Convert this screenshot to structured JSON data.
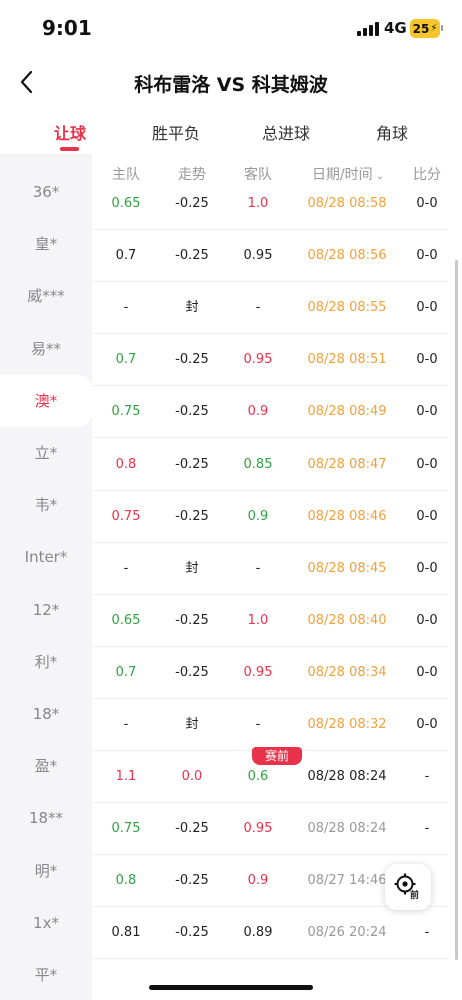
{
  "status_bar": {
    "time": "9:01",
    "network": "4G",
    "battery": "25"
  },
  "header": {
    "title": "科布雷洛 VS 科其姆波"
  },
  "tabs": [
    {
      "label": "让球",
      "active": true
    },
    {
      "label": "胜平负",
      "active": false
    },
    {
      "label": "总进球",
      "active": false
    },
    {
      "label": "角球",
      "active": false
    }
  ],
  "table_headers": {
    "home": "主队",
    "trend": "走势",
    "away": "客队",
    "date": "日期/时间",
    "score": "比分"
  },
  "sidebar": {
    "items": [
      {
        "label": "36*"
      },
      {
        "label": "皇*"
      },
      {
        "label": "威***"
      },
      {
        "label": "易**"
      },
      {
        "label": "澳*",
        "active": true
      },
      {
        "label": "立*"
      },
      {
        "label": "韦*"
      },
      {
        "label": "Inter*"
      },
      {
        "label": "12*"
      },
      {
        "label": "利*"
      },
      {
        "label": "18*"
      },
      {
        "label": "盈*"
      },
      {
        "label": "18**"
      },
      {
        "label": "明*"
      },
      {
        "label": "1x*"
      },
      {
        "label": "平*"
      }
    ]
  },
  "pre_match_badge": "赛前",
  "rows": [
    {
      "home": "0.65",
      "trend": "-0.25",
      "away": "1.0",
      "date": "08/28 08:58",
      "score": "0-0",
      "hc": "green",
      "ac": "red",
      "dc": "orange"
    },
    {
      "home": "0.7",
      "trend": "-0.25",
      "away": "0.95",
      "date": "08/28 08:56",
      "score": "0-0",
      "hc": "",
      "ac": "",
      "dc": "orange"
    },
    {
      "home": "-",
      "trend": "封",
      "away": "-",
      "date": "08/28 08:55",
      "score": "0-0",
      "hc": "",
      "ac": "",
      "dc": "orange"
    },
    {
      "home": "0.7",
      "trend": "-0.25",
      "away": "0.95",
      "date": "08/28 08:51",
      "score": "0-0",
      "hc": "green",
      "ac": "red",
      "dc": "orange"
    },
    {
      "home": "0.75",
      "trend": "-0.25",
      "away": "0.9",
      "date": "08/28 08:49",
      "score": "0-0",
      "hc": "green",
      "ac": "red",
      "dc": "orange"
    },
    {
      "home": "0.8",
      "trend": "-0.25",
      "away": "0.85",
      "date": "08/28 08:47",
      "score": "0-0",
      "hc": "red",
      "ac": "green",
      "dc": "orange"
    },
    {
      "home": "0.75",
      "trend": "-0.25",
      "away": "0.9",
      "date": "08/28 08:46",
      "score": "0-0",
      "hc": "red",
      "ac": "green",
      "dc": "orange"
    },
    {
      "home": "-",
      "trend": "封",
      "away": "-",
      "date": "08/28 08:45",
      "score": "0-0",
      "hc": "",
      "ac": "",
      "dc": "orange"
    },
    {
      "home": "0.65",
      "trend": "-0.25",
      "away": "1.0",
      "date": "08/28 08:40",
      "score": "0-0",
      "hc": "green",
      "ac": "red",
      "dc": "orange"
    },
    {
      "home": "0.7",
      "trend": "-0.25",
      "away": "0.95",
      "date": "08/28 08:34",
      "score": "0-0",
      "hc": "green",
      "ac": "red",
      "dc": "orange"
    },
    {
      "home": "-",
      "trend": "封",
      "away": "-",
      "date": "08/28 08:32",
      "score": "0-0",
      "hc": "",
      "ac": "",
      "dc": "orange"
    },
    {
      "home": "1.1",
      "trend": "0.0",
      "away": "0.6",
      "date": "08/28 08:24",
      "score": "-",
      "hc": "red",
      "ac": "green",
      "dc": "",
      "tc": "red",
      "badge": true
    },
    {
      "home": "0.75",
      "trend": "-0.25",
      "away": "0.95",
      "date": "08/28 08:24",
      "score": "-",
      "hc": "green",
      "ac": "red",
      "dc": "gray"
    },
    {
      "home": "0.8",
      "trend": "-0.25",
      "away": "0.9",
      "date": "08/27 14:46",
      "score": "",
      "hc": "green",
      "ac": "red",
      "dc": "gray"
    },
    {
      "home": "0.81",
      "trend": "-0.25",
      "away": "0.89",
      "date": "08/26 20:24",
      "score": "-",
      "hc": "",
      "ac": "",
      "dc": "gray"
    }
  ],
  "locate_button": {
    "label": "前"
  },
  "colors": {
    "accent": "#e8324a",
    "green": "#2ea341",
    "orange": "#f2a13b"
  }
}
